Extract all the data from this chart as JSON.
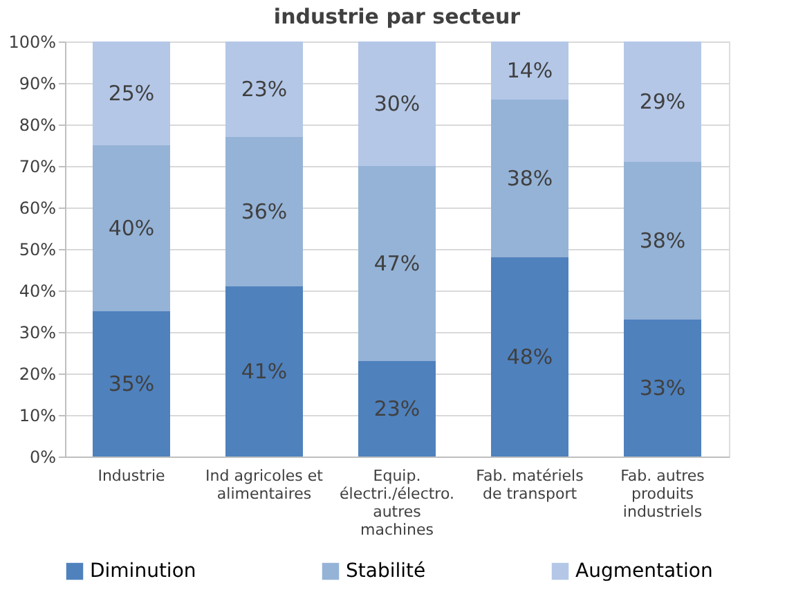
{
  "chart_data": {
    "type": "bar",
    "stacked": true,
    "title": "industrie par secteur",
    "categories": [
      "Industrie",
      "Ind agricoles et\nalimentaires",
      "Equip.\nélectri./électro.\nautres\nmachines",
      "Fab. matériels\nde transport",
      "Fab. autres\nproduits\nindustriels"
    ],
    "series": [
      {
        "name": "Diminution",
        "color": "#4f81bd",
        "values": [
          35,
          41,
          23,
          48,
          33
        ],
        "value_labels": [
          "35%",
          "41%",
          "23%",
          "48%",
          "33%"
        ]
      },
      {
        "name": "Stabilité",
        "color": "#95b3d7",
        "values": [
          40,
          36,
          47,
          38,
          38
        ],
        "value_labels": [
          "40%",
          "36%",
          "47%",
          "38%",
          "38%"
        ]
      },
      {
        "name": "Augmentation",
        "color": "#b4c7e7",
        "values": [
          25,
          23,
          30,
          14,
          29
        ],
        "value_labels": [
          "25%",
          "23%",
          "30%",
          "14%",
          "29%"
        ]
      }
    ],
    "ylim": [
      0,
      100
    ],
    "yticks": [
      {
        "value": 0,
        "label": "0%"
      },
      {
        "value": 10,
        "label": "10%"
      },
      {
        "value": 20,
        "label": "20%"
      },
      {
        "value": 30,
        "label": "30%"
      },
      {
        "value": 40,
        "label": "40%"
      },
      {
        "value": 50,
        "label": "50%"
      },
      {
        "value": 60,
        "label": "60%"
      },
      {
        "value": 70,
        "label": "70%"
      },
      {
        "value": 80,
        "label": "80%"
      },
      {
        "value": 90,
        "label": "90%"
      },
      {
        "value": 100,
        "label": "100%"
      }
    ],
    "grid": "y",
    "legend": "bottom"
  }
}
